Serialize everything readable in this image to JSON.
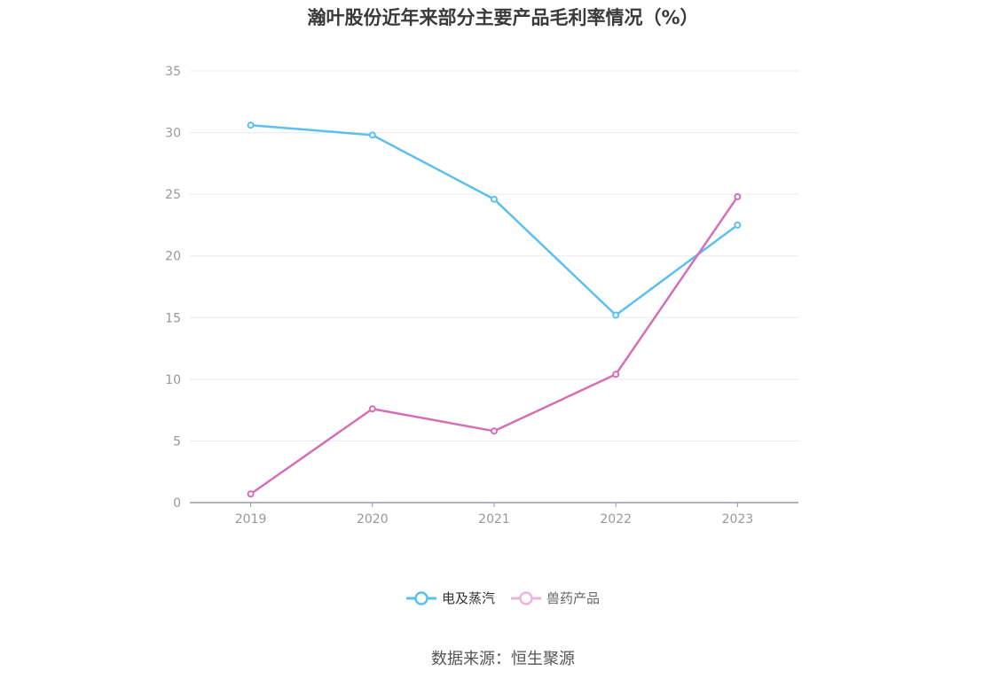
{
  "title": "瀚叶股份近年来部分主要产品毛利率情况（%）",
  "source": "数据来源：恒生聚源",
  "colors": {
    "series1": "#5bc0f0",
    "series2": "#d56fb5",
    "grid": "#e6e9f2",
    "axis": "#9a9aa6",
    "tick": "#999999"
  },
  "chart_data": {
    "type": "line",
    "title": "瀚叶股份近年来部分主要产品毛利率情况（%）",
    "x": [
      "2019",
      "2020",
      "2021",
      "2022",
      "2023"
    ],
    "ylim": [
      0,
      35
    ],
    "yticks": [
      0,
      5,
      10,
      15,
      20,
      25,
      30,
      35
    ],
    "grid": true,
    "legend_position": "bottom-center",
    "series": [
      {
        "name": "电及蒸汽",
        "values": [
          30.6,
          29.8,
          24.6,
          15.2,
          22.5
        ]
      },
      {
        "name": "兽药产品",
        "values": [
          0.7,
          7.6,
          5.8,
          10.4,
          24.8
        ]
      }
    ]
  }
}
